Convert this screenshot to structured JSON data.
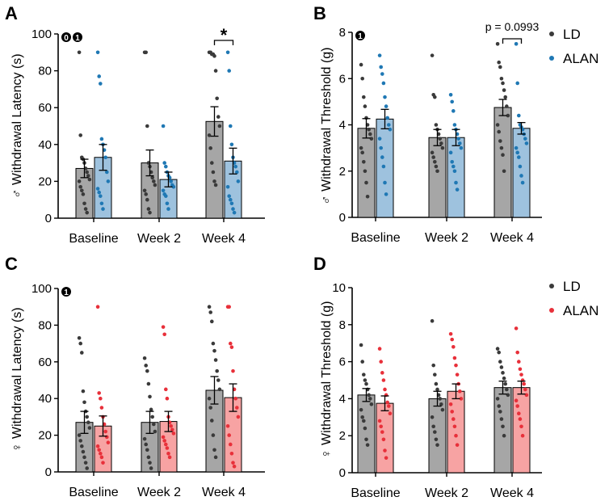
{
  "colors": {
    "ld_bar": "#a6a6a6",
    "ld_dot": "#3a3a3a",
    "alan_male_bar": "#9ec2de",
    "alan_male_dot": "#1f78b4",
    "alan_female_bar": "#f7a3a3",
    "alan_female_dot": "#e8303a",
    "axis": "#000000"
  },
  "chart_data": [
    {
      "panel_letter": "A",
      "type": "bar",
      "ylabel_symbol": "♂",
      "ylabel": "Withdrawal Latency (s)",
      "categories": [
        "Baseline",
        "Week 2",
        "Week 4"
      ],
      "yticks": [
        0,
        20,
        40,
        60,
        80,
        100
      ],
      "ylim": [
        0,
        100
      ],
      "theme": "male",
      "series": [
        {
          "name": "LD",
          "values": [
            27,
            30,
            52.5
          ],
          "sem": [
            5,
            7,
            8
          ],
          "points": [
            [
              90,
              45,
              33,
              32,
              30,
              27,
              25,
              23,
              21,
              20,
              17,
              15,
              13,
              8,
              5,
              3
            ],
            [
              90,
              90,
              50,
              30,
              28,
              25,
              22,
              20,
              18,
              15,
              13,
              10,
              5,
              3
            ],
            [
              90,
              90,
              89,
              89,
              88,
              80,
              65,
              55,
              50,
              45,
              38,
              30,
              25,
              20,
              18
            ]
          ]
        },
        {
          "name": "ALAN",
          "values": [
            33,
            21,
            31
          ],
          "sem": [
            7,
            4,
            7
          ],
          "points": [
            [
              90,
              77,
              73,
              43,
              40,
              37,
              33,
              25,
              20,
              16,
              14,
              12,
              8,
              5
            ],
            [
              50,
              30,
              28,
              25,
              23,
              22,
              20,
              18,
              17,
              15,
              13,
              12,
              8,
              5
            ],
            [
              90,
              80,
              50,
              40,
              33,
              30,
              28,
              25,
              20,
              17,
              12,
              10,
              8,
              5,
              3
            ]
          ]
        }
      ],
      "annotations": [
        {
          "text": "*",
          "between_category": "Week 4"
        }
      ],
      "corner_markers": [
        "0",
        "1"
      ],
      "legend": null
    },
    {
      "panel_letter": "B",
      "type": "bar",
      "ylabel_symbol": "♂",
      "ylabel": "Withdrawal Threshold (g)",
      "categories": [
        "Baseline",
        "Week 2",
        "Week 4"
      ],
      "yticks": [
        0,
        2,
        4,
        6,
        8
      ],
      "ylim": [
        0,
        8
      ],
      "theme": "male",
      "series": [
        {
          "name": "LD",
          "values": [
            3.85,
            3.45,
            4.75
          ],
          "sem": [
            0.42,
            0.35,
            0.35
          ],
          "points": [
            [
              6.6,
              6.0,
              5.2,
              4.8,
              4.3,
              4.0,
              3.8,
              3.6,
              3.4,
              3.0,
              2.8,
              2.4,
              2.0,
              1.5,
              0.9
            ],
            [
              7.0,
              5.3,
              5.2,
              4.0,
              3.8,
              3.6,
              3.4,
              3.2,
              3.0,
              2.8,
              2.6,
              2.4,
              2.2,
              2.0
            ],
            [
              7.5,
              6.7,
              6.5,
              6.0,
              5.8,
              5.5,
              5.2,
              4.8,
              4.4,
              4.0,
              3.7,
              3.3,
              3.0,
              2.7,
              2.0
            ]
          ]
        },
        {
          "name": "ALAN",
          "values": [
            4.25,
            3.45,
            3.85
          ],
          "sem": [
            0.42,
            0.35,
            0.25
          ],
          "points": [
            [
              7.0,
              6.5,
              6.2,
              5.8,
              5.2,
              4.8,
              4.3,
              4.0,
              3.8,
              3.4,
              3.0,
              2.6,
              2.2,
              1.5,
              1.0
            ],
            [
              5.3,
              5.0,
              4.6,
              4.0,
              3.8,
              3.6,
              3.4,
              3.2,
              3.0,
              2.8,
              2.4,
              2.2,
              2.0,
              1.5,
              1.2
            ],
            [
              7.5,
              5.8,
              4.4,
              4.0,
              3.9,
              3.8,
              3.6,
              3.4,
              3.2,
              3.0,
              2.8,
              2.6,
              2.2,
              1.8,
              1.5
            ]
          ]
        }
      ],
      "annotations": [
        {
          "text": "p = 0.0993",
          "between_category": "Week 4"
        }
      ],
      "corner_markers": [
        "1"
      ],
      "legend": [
        "LD",
        "ALAN"
      ]
    },
    {
      "panel_letter": "C",
      "type": "bar",
      "ylabel_symbol": "♀",
      "ylabel": "Withdrawal Latency (s)",
      "categories": [
        "Baseline",
        "Week 2",
        "Week 4"
      ],
      "yticks": [
        0,
        20,
        40,
        60,
        80,
        100
      ],
      "ylim": [
        0,
        100
      ],
      "theme": "female",
      "series": [
        {
          "name": "LD",
          "values": [
            27,
            27,
            44.5
          ],
          "sem": [
            6,
            6,
            7.5
          ],
          "points": [
            [
              73,
              70,
              65,
              44,
              38,
              33,
              30,
              27,
              24,
              20,
              17,
              14,
              11,
              8,
              5,
              2
            ],
            [
              62,
              58,
              55,
              48,
              41,
              34,
              30,
              26,
              22,
              18,
              15,
              12,
              8,
              5,
              2
            ],
            [
              90,
              87,
              82,
              70,
              66,
              61,
              55,
              50,
              45,
              40,
              35,
              28,
              20,
              12,
              8
            ]
          ]
        },
        {
          "name": "ALAN",
          "values": [
            25,
            27.5,
            40.5
          ],
          "sem": [
            5.5,
            5.5,
            7.5
          ],
          "points": [
            [
              90,
              43,
              40,
              35,
              30,
              26,
              22,
              19,
              16,
              14,
              12,
              10,
              8,
              5
            ],
            [
              79,
              75,
              45,
              40,
              30,
              27,
              25,
              23,
              21,
              19,
              17,
              15,
              13,
              10,
              8
            ],
            [
              90,
              90,
              70,
              68,
              55,
              45,
              40,
              35,
              30,
              25,
              20,
              15,
              10,
              5,
              3
            ]
          ]
        }
      ],
      "annotations": [],
      "corner_markers": [
        "1"
      ],
      "legend": null
    },
    {
      "panel_letter": "D",
      "type": "bar",
      "ylabel_symbol": "♀",
      "ylabel": "Withdrawal Threshold (g)",
      "categories": [
        "Baseline",
        "Week 2",
        "Week 4"
      ],
      "yticks": [
        0,
        2,
        4,
        6,
        8,
        10
      ],
      "ylim": [
        0,
        10
      ],
      "theme": "female",
      "series": [
        {
          "name": "LD",
          "values": [
            4.2,
            4.0,
            4.6
          ],
          "sem": [
            0.35,
            0.4,
            0.35
          ],
          "points": [
            [
              6.9,
              6.0,
              5.3,
              5.0,
              4.8,
              4.5,
              4.2,
              4.0,
              3.7,
              3.4,
              3.0,
              2.8,
              2.4,
              1.8,
              1.5
            ],
            [
              8.2,
              5.8,
              5.3,
              4.8,
              4.5,
              4.2,
              4.0,
              3.7,
              3.4,
              3.0,
              2.5,
              2.2,
              1.8,
              1.5
            ],
            [
              6.7,
              6.5,
              6.0,
              5.7,
              5.4,
              5.1,
              4.8,
              4.5,
              4.2,
              4.0,
              3.6,
              3.3,
              2.9,
              2.5,
              2.0
            ]
          ]
        },
        {
          "name": "ALAN",
          "values": [
            3.75,
            4.4,
            4.6
          ],
          "sem": [
            0.4,
            0.4,
            0.35
          ],
          "points": [
            [
              6.7,
              6.0,
              5.4,
              5.0,
              4.5,
              4.2,
              3.8,
              3.6,
              3.2,
              2.8,
              2.5,
              2.2,
              1.8,
              1.2,
              0.8
            ],
            [
              7.5,
              7.2,
              6.8,
              6.2,
              5.8,
              5.3,
              4.8,
              4.4,
              4.0,
              3.7,
              3.3,
              2.9,
              2.5,
              2.0,
              1.5
            ],
            [
              7.8,
              6.5,
              6.0,
              5.6,
              5.3,
              5.0,
              4.8,
              4.5,
              4.2,
              3.9,
              3.6,
              3.2,
              2.9,
              2.5,
              2.0
            ]
          ]
        }
      ],
      "annotations": [],
      "corner_markers": [],
      "legend": [
        "LD",
        "ALAN"
      ]
    }
  ]
}
